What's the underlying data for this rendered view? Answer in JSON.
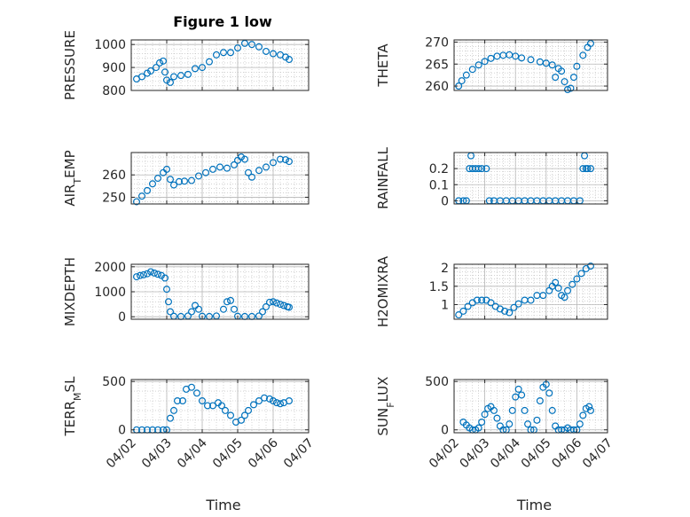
{
  "figure": {
    "title": "Figure 1 low",
    "xlabel": "Time",
    "marker_color": "#0072BD",
    "axis_color": "#262626",
    "grid_color": "#b8b8b8"
  },
  "chart_data": [
    {
      "type": "scatter",
      "panel": "left",
      "row": 0,
      "title": "Figure 1 low",
      "ylabel": "PRESSURE",
      "ylim": [
        800,
        1020
      ],
      "yticks": [
        800,
        900,
        1000
      ],
      "ytick_labels": [
        "800",
        "900",
        "1000"
      ],
      "xlim": [
        0,
        5
      ],
      "xtick_labels": [],
      "xlabel": "",
      "grid": true,
      "x": [
        0.15,
        0.3,
        0.45,
        0.55,
        0.7,
        0.8,
        0.9,
        0.95,
        1.0,
        1.1,
        1.2,
        1.4,
        1.6,
        1.8,
        2.0,
        2.2,
        2.4,
        2.6,
        2.8,
        3.0,
        3.2,
        3.4,
        3.6,
        3.8,
        4.0,
        4.2,
        4.35,
        4.45
      ],
      "y": [
        850,
        860,
        875,
        885,
        900,
        920,
        928,
        880,
        845,
        835,
        860,
        865,
        870,
        895,
        900,
        925,
        955,
        965,
        965,
        985,
        1005,
        1000,
        990,
        970,
        960,
        955,
        945,
        935
      ]
    },
    {
      "type": "scatter",
      "panel": "right",
      "row": 0,
      "ylabel": "THETA",
      "ylim": [
        259,
        270.5
      ],
      "yticks": [
        260,
        265,
        270
      ],
      "ytick_labels": [
        "260",
        "265",
        "270"
      ],
      "xlim": [
        0,
        5
      ],
      "xtick_labels": [],
      "xlabel": "",
      "grid": true,
      "x": [
        0.15,
        0.25,
        0.4,
        0.6,
        0.8,
        1.0,
        1.2,
        1.4,
        1.6,
        1.8,
        2.0,
        2.2,
        2.5,
        2.8,
        3.0,
        3.2,
        3.3,
        3.4,
        3.5,
        3.6,
        3.7,
        3.8,
        3.9,
        4.0,
        4.2,
        4.35,
        4.45
      ],
      "y": [
        260,
        261.2,
        262.5,
        263.8,
        264.8,
        265.6,
        266.3,
        266.8,
        267.0,
        267.1,
        266.8,
        266.4,
        266.0,
        265.5,
        265.2,
        264.8,
        262,
        264,
        263.4,
        261,
        259.2,
        259.5,
        262,
        264.5,
        267.0,
        268.8,
        269.7
      ]
    },
    {
      "type": "scatter",
      "panel": "left",
      "row": 1,
      "ylabel": "AIR_TEMP",
      "ylim": [
        247,
        270
      ],
      "yticks": [
        250,
        260
      ],
      "ytick_labels": [
        "250",
        "260"
      ],
      "xlim": [
        0,
        5
      ],
      "xtick_labels": [],
      "xlabel": "",
      "grid": true,
      "x": [
        0.15,
        0.3,
        0.45,
        0.6,
        0.75,
        0.9,
        1.0,
        1.1,
        1.2,
        1.35,
        1.5,
        1.7,
        1.9,
        2.1,
        2.3,
        2.5,
        2.7,
        2.9,
        3.0,
        3.1,
        3.2,
        3.3,
        3.4,
        3.6,
        3.8,
        4.0,
        4.2,
        4.35,
        4.45
      ],
      "y": [
        248,
        250.5,
        253,
        256,
        258.5,
        261,
        262.5,
        258,
        255.5,
        257,
        257.2,
        257.5,
        259.5,
        261,
        262.5,
        263.5,
        263,
        264.5,
        266.5,
        268,
        267,
        261,
        259,
        262,
        263.5,
        265.5,
        267,
        266.8,
        266
      ]
    },
    {
      "type": "scatter",
      "panel": "right",
      "row": 1,
      "ylabel": "RAINFALL",
      "ylim": [
        -0.02,
        0.3
      ],
      "yticks": [
        0,
        0.1,
        0.2
      ],
      "ytick_labels": [
        "0",
        "0.1",
        "0.2"
      ],
      "xlim": [
        0,
        5
      ],
      "xtick_labels": [],
      "xlabel": "",
      "grid": true,
      "x": [
        0.15,
        0.3,
        0.4,
        0.5,
        0.55,
        0.6,
        0.7,
        0.8,
        0.9,
        1.05,
        1.15,
        1.3,
        1.5,
        1.7,
        1.9,
        2.1,
        2.3,
        2.5,
        2.7,
        2.9,
        3.1,
        3.3,
        3.5,
        3.7,
        3.9,
        4.1,
        4.2,
        4.25,
        4.3,
        4.35,
        4.45
      ],
      "y": [
        0,
        0,
        0,
        0.2,
        0.28,
        0.2,
        0.2,
        0.2,
        0.2,
        0.2,
        0,
        0,
        0,
        0,
        0,
        0,
        0,
        0,
        0,
        0,
        0,
        0,
        0,
        0,
        0,
        0,
        0.2,
        0.28,
        0.2,
        0.2,
        0.2
      ]
    },
    {
      "type": "scatter",
      "panel": "left",
      "row": 2,
      "ylabel": "MIXDEPTH",
      "ylim": [
        -100,
        2100
      ],
      "yticks": [
        0,
        1000,
        2000
      ],
      "ytick_labels": [
        "0",
        "1000",
        "2000"
      ],
      "xlim": [
        0,
        5
      ],
      "xtick_labels": [],
      "xlabel": "",
      "grid": true,
      "x": [
        0.15,
        0.25,
        0.35,
        0.45,
        0.55,
        0.65,
        0.75,
        0.85,
        0.95,
        1.0,
        1.05,
        1.1,
        1.2,
        1.4,
        1.6,
        1.7,
        1.8,
        1.9,
        2.0,
        2.2,
        2.4,
        2.6,
        2.7,
        2.8,
        2.9,
        3.0,
        3.2,
        3.4,
        3.6,
        3.7,
        3.8,
        3.9,
        4.0,
        4.1,
        4.2,
        4.3,
        4.4,
        4.45
      ],
      "y": [
        1600,
        1650,
        1680,
        1720,
        1800,
        1750,
        1700,
        1650,
        1550,
        1100,
        600,
        200,
        20,
        10,
        30,
        200,
        450,
        300,
        20,
        10,
        30,
        300,
        600,
        650,
        300,
        20,
        10,
        10,
        30,
        200,
        400,
        580,
        600,
        550,
        500,
        450,
        400,
        380
      ]
    },
    {
      "type": "scatter",
      "panel": "right",
      "row": 2,
      "ylabel": "H2OMIXRA",
      "ylim": [
        0.6,
        2.1
      ],
      "yticks": [
        1,
        1.5,
        2
      ],
      "ytick_labels": [
        "1",
        "1.5",
        "2"
      ],
      "xlim": [
        0,
        5
      ],
      "xtick_labels": [],
      "xlabel": "",
      "grid": true,
      "x": [
        0.15,
        0.3,
        0.45,
        0.6,
        0.75,
        0.9,
        1.05,
        1.2,
        1.35,
        1.5,
        1.65,
        1.8,
        1.95,
        2.1,
        2.3,
        2.5,
        2.7,
        2.9,
        3.1,
        3.2,
        3.3,
        3.4,
        3.5,
        3.6,
        3.7,
        3.85,
        4.0,
        4.15,
        4.3,
        4.45
      ],
      "y": [
        0.72,
        0.82,
        0.95,
        1.05,
        1.12,
        1.12,
        1.12,
        1.05,
        0.95,
        0.88,
        0.82,
        0.78,
        0.92,
        1.02,
        1.12,
        1.12,
        1.25,
        1.25,
        1.38,
        1.5,
        1.6,
        1.45,
        1.25,
        1.2,
        1.38,
        1.55,
        1.7,
        1.85,
        1.98,
        2.05
      ]
    },
    {
      "type": "scatter",
      "panel": "left",
      "row": 3,
      "ylabel": "TERR_MSL",
      "ylim": [
        -30,
        520
      ],
      "yticks": [
        0,
        500
      ],
      "ytick_labels": [
        "0",
        "500"
      ],
      "xlim": [
        0,
        5
      ],
      "xtick_labels": [
        "04/02",
        "04/03",
        "04/04",
        "04/05",
        "04/06",
        "04/07"
      ],
      "xlabel": "Time",
      "grid": true,
      "x": [
        0.15,
        0.3,
        0.45,
        0.6,
        0.75,
        0.9,
        1.0,
        1.1,
        1.2,
        1.3,
        1.45,
        1.55,
        1.7,
        1.85,
        2.0,
        2.15,
        2.3,
        2.45,
        2.55,
        2.65,
        2.8,
        2.95,
        3.1,
        3.2,
        3.3,
        3.45,
        3.6,
        3.75,
        3.9,
        4.0,
        4.1,
        4.2,
        4.3,
        4.45
      ],
      "y": [
        0,
        0,
        0,
        0,
        0,
        0,
        0,
        120,
        200,
        300,
        300,
        420,
        440,
        380,
        300,
        250,
        250,
        280,
        250,
        200,
        150,
        80,
        100,
        150,
        200,
        260,
        300,
        330,
        320,
        300,
        280,
        270,
        280,
        300
      ]
    },
    {
      "type": "scatter",
      "panel": "right",
      "row": 3,
      "ylabel": "SUN_FLUX",
      "ylim": [
        -30,
        520
      ],
      "yticks": [
        0,
        500
      ],
      "ytick_labels": [
        "0",
        "500"
      ],
      "xlim": [
        0,
        5
      ],
      "xtick_labels": [
        "04/02",
        "04/03",
        "04/04",
        "04/05",
        "04/06",
        "04/07"
      ],
      "xlabel": "Time",
      "grid": true,
      "x": [
        0.3,
        0.4,
        0.5,
        0.6,
        0.7,
        0.8,
        0.9,
        1.0,
        1.1,
        1.2,
        1.3,
        1.4,
        1.5,
        1.6,
        1.7,
        1.8,
        1.9,
        2.0,
        2.1,
        2.2,
        2.3,
        2.4,
        2.5,
        2.6,
        2.7,
        2.8,
        2.9,
        3.0,
        3.1,
        3.2,
        3.3,
        3.4,
        3.5,
        3.6,
        3.7,
        3.8,
        3.9,
        4.0,
        4.1,
        4.2,
        4.3,
        4.4,
        4.45
      ],
      "y": [
        80,
        50,
        20,
        0,
        0,
        20,
        80,
        160,
        220,
        240,
        200,
        120,
        40,
        0,
        0,
        60,
        200,
        340,
        420,
        360,
        200,
        60,
        0,
        0,
        100,
        300,
        440,
        470,
        380,
        200,
        40,
        0,
        0,
        0,
        20,
        0,
        0,
        0,
        60,
        150,
        220,
        240,
        200
      ]
    }
  ]
}
